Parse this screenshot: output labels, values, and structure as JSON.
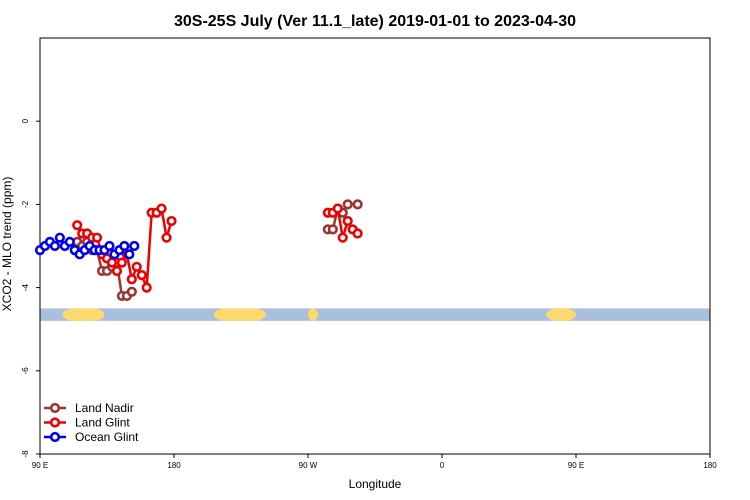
{
  "chart_data": {
    "type": "line",
    "title": "30S-25S July (Ver 11.1_late)   2019-01-01 to 2023-04-30",
    "xlabel": "Longitude",
    "ylabel": "XCO2 - MLO trend (ppm)",
    "xlim": [
      -90,
      180
    ],
    "ylim": [
      -8,
      2
    ],
    "xtick_values": [
      -90,
      -36,
      18,
      72,
      126,
      180
    ],
    "xticks": [
      "90 E",
      "180",
      "90 W",
      "0",
      "90 E",
      "180"
    ],
    "yticks": [
      0,
      -2,
      -4,
      -6,
      -8
    ],
    "legend_position": "bottom-left",
    "series": [
      {
        "name": "Land Nadir",
        "color": "#9b3535",
        "x": [
          -75,
          -73,
          -71,
          -69,
          -67,
          -65,
          -63,
          -61,
          -59,
          -57,
          -55,
          -53,
          26,
          28,
          30,
          32,
          34,
          38
        ],
        "y": [
          -2.9,
          -3.0,
          -2.9,
          -3.1,
          -3.1,
          -3.6,
          -3.6,
          -3.5,
          -3.4,
          -4.2,
          -4.2,
          -4.1,
          -2.6,
          -2.6,
          -2.1,
          -2.2,
          -2.0,
          -2.0
        ]
      },
      {
        "name": "Land Glint",
        "color": "#ee0000",
        "x": [
          -75,
          -73,
          -71,
          -69,
          -67,
          -65,
          -63,
          -61,
          -59,
          -57,
          -55,
          -53,
          -51,
          -49,
          -47,
          -45,
          -43,
          -41,
          -39,
          -37,
          26,
          28,
          30,
          32,
          34,
          36,
          38
        ],
        "y": [
          -2.5,
          -2.7,
          -2.7,
          -2.8,
          -2.8,
          -3.2,
          -3.3,
          -3.4,
          -3.6,
          -3.4,
          -3.2,
          -3.8,
          -3.5,
          -3.7,
          -4.0,
          -2.2,
          -2.2,
          -2.1,
          -2.8,
          -2.4,
          -2.2,
          -2.2,
          -2.1,
          -2.8,
          -2.4,
          -2.6,
          -2.7
        ]
      },
      {
        "name": "Ocean Glint",
        "color": "#0000ee",
        "x": [
          -90,
          -88,
          -86,
          -84,
          -82,
          -80,
          -78,
          -76,
          -74,
          -72,
          -70,
          -68,
          -66,
          -64,
          -62,
          -60,
          -58,
          -56,
          -54,
          -52
        ],
        "y": [
          -3.1,
          -3.0,
          -2.9,
          -3.0,
          -2.8,
          -3.0,
          -2.9,
          -3.1,
          -3.2,
          -3.1,
          -3.0,
          -3.1,
          -3.1,
          -3.1,
          -3.0,
          -3.2,
          -3.1,
          -3.0,
          -3.2,
          -3.0
        ]
      }
    ]
  }
}
